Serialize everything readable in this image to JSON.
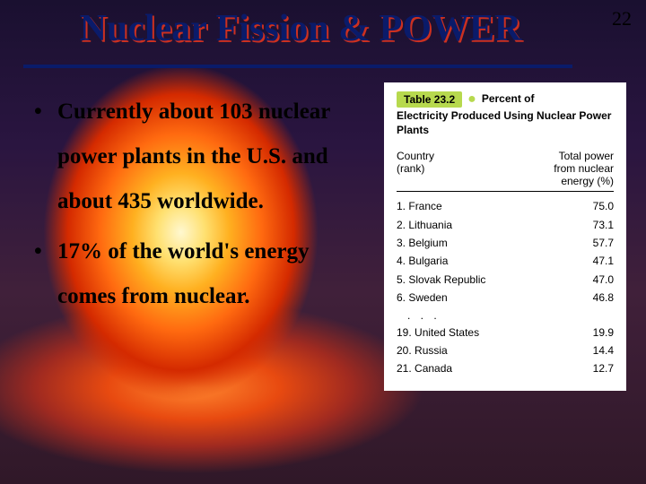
{
  "page_number": "22",
  "title": "Nuclear Fission & POWER",
  "bullets": [
    "Currently about 103 nuclear power plants in the U.S. and about 435 worldwide.",
    "17% of the world's energy comes from nuclear."
  ],
  "table": {
    "label": "Table 23.2",
    "title": "Percent of Electricity Produced Using Nuclear Power Plants",
    "col1_header": "Country (rank)",
    "col2_header": "Total power from nuclear energy (%)",
    "rows_top": [
      {
        "rank": "1.",
        "country": "France",
        "value": "75.0"
      },
      {
        "rank": "2.",
        "country": "Lithuania",
        "value": "73.1"
      },
      {
        "rank": "3.",
        "country": "Belgium",
        "value": "57.7"
      },
      {
        "rank": "4.",
        "country": "Bulgaria",
        "value": "47.1"
      },
      {
        "rank": "5.",
        "country": "Slovak Republic",
        "value": "47.0"
      },
      {
        "rank": "6.",
        "country": "Sweden",
        "value": "46.8"
      }
    ],
    "ellipsis": ". . .",
    "rows_bottom": [
      {
        "rank": "19.",
        "country": "United States",
        "value": "19.9"
      },
      {
        "rank": "20.",
        "country": "Russia",
        "value": "14.4"
      },
      {
        "rank": "21.",
        "country": "Canada",
        "value": "12.7"
      }
    ]
  },
  "style": {
    "title_color": "#0a1b6a",
    "title_shadow": "#cc3020",
    "rule_color": "#0a1b6a",
    "table_label_bg": "#b7d94e"
  }
}
